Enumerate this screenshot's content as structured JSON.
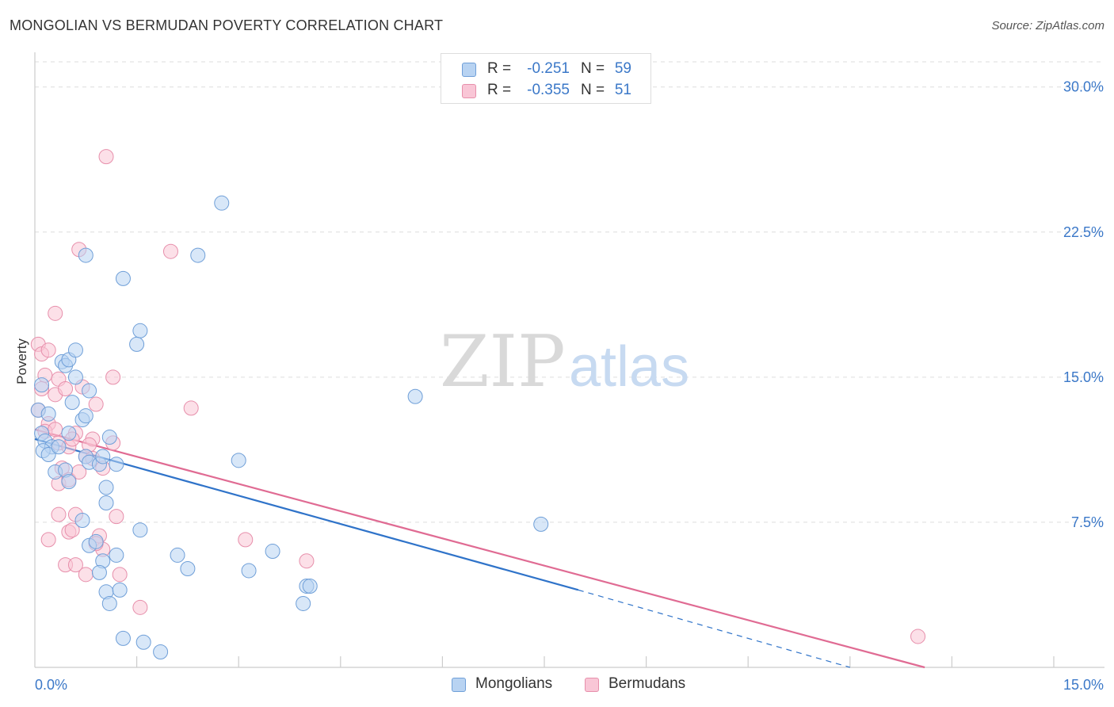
{
  "header": {
    "title": "MONGOLIAN VS BERMUDAN POVERTY CORRELATION CHART",
    "source": "Source: ZipAtlas.com"
  },
  "watermark": {
    "zip": "ZIP",
    "atlas": "atlas"
  },
  "legend": {
    "rows": [
      {
        "r_label": "R =",
        "r_value": "-0.251",
        "n_label": "N =",
        "n_value": "59"
      },
      {
        "r_label": "R =",
        "r_value": "-0.355",
        "n_label": "N =",
        "n_value": "51"
      }
    ]
  },
  "bottom_legend": {
    "mongolians": "Mongolians",
    "bermudans": "Bermudans"
  },
  "colors": {
    "mongolian_fill": "#b8d3f2",
    "mongolian_stroke": "#6f9fd8",
    "mongolian_line": "#2f73c9",
    "bermudan_fill": "#f9c6d6",
    "bermudan_stroke": "#e78fab",
    "bermudan_line": "#e06b93",
    "tick_label": "#3b78c8",
    "grid": "#dddddd"
  },
  "chart_data": {
    "type": "scatter",
    "title": "MONGOLIAN VS BERMUDAN POVERTY CORRELATION CHART",
    "xlabel": "",
    "ylabel": "Poverty",
    "xlim": [
      0,
      15
    ],
    "ylim": [
      0,
      31.3
    ],
    "x_tick_labels": [
      "0.0%",
      "15.0%"
    ],
    "y_ticks": [
      7.5,
      15.0,
      22.5,
      30.0
    ],
    "y_tick_labels": [
      "7.5%",
      "15.0%",
      "22.5%",
      "30.0%"
    ],
    "grid": true,
    "legend_position": "top-center",
    "series": [
      {
        "name": "Mongolians",
        "r": -0.251,
        "n": 59,
        "trend": {
          "x_start": 0.0,
          "y_start": 11.8,
          "x_end": 8.0,
          "y_end": 4.0,
          "dashed_to_x": 12.0,
          "dashed_to_y": 0.0
        },
        "points": [
          [
            0.1,
            14.6
          ],
          [
            0.05,
            13.3
          ],
          [
            0.2,
            13.1
          ],
          [
            0.1,
            12.1
          ],
          [
            0.15,
            11.7
          ],
          [
            0.25,
            11.4
          ],
          [
            0.12,
            11.2
          ],
          [
            0.2,
            11.0
          ],
          [
            0.35,
            11.4
          ],
          [
            0.4,
            15.8
          ],
          [
            0.45,
            15.6
          ],
          [
            0.5,
            15.9
          ],
          [
            0.55,
            13.7
          ],
          [
            0.5,
            12.1
          ],
          [
            0.6,
            16.4
          ],
          [
            0.6,
            15.0
          ],
          [
            0.3,
            10.1
          ],
          [
            0.45,
            10.2
          ],
          [
            0.5,
            9.6
          ],
          [
            0.7,
            12.8
          ],
          [
            0.75,
            13.0
          ],
          [
            0.8,
            14.3
          ],
          [
            0.75,
            10.9
          ],
          [
            0.8,
            10.6
          ],
          [
            0.7,
            7.6
          ],
          [
            0.8,
            6.3
          ],
          [
            0.9,
            6.5
          ],
          [
            0.95,
            10.5
          ],
          [
            1.0,
            10.9
          ],
          [
            1.05,
            9.3
          ],
          [
            1.05,
            8.5
          ],
          [
            1.1,
            11.9
          ],
          [
            1.2,
            10.5
          ],
          [
            1.0,
            5.5
          ],
          [
            1.2,
            5.8
          ],
          [
            1.05,
            3.9
          ],
          [
            1.1,
            3.3
          ],
          [
            1.25,
            4.0
          ],
          [
            0.95,
            4.9
          ],
          [
            1.55,
            17.4
          ],
          [
            1.5,
            16.7
          ],
          [
            1.3,
            20.1
          ],
          [
            1.55,
            7.1
          ],
          [
            0.75,
            21.3
          ],
          [
            2.4,
            21.3
          ],
          [
            2.75,
            24.0
          ],
          [
            2.1,
            5.8
          ],
          [
            2.25,
            5.1
          ],
          [
            3.0,
            10.7
          ],
          [
            3.15,
            5.0
          ],
          [
            3.5,
            6.0
          ],
          [
            4.0,
            4.2
          ],
          [
            4.05,
            4.2
          ],
          [
            3.95,
            3.3
          ],
          [
            5.6,
            14.0
          ],
          [
            7.45,
            7.4
          ],
          [
            1.6,
            1.3
          ],
          [
            1.85,
            0.8
          ],
          [
            1.3,
            1.5
          ]
        ]
      },
      {
        "name": "Bermudans",
        "r": -0.355,
        "n": 51,
        "trend": {
          "x_start": 0.0,
          "y_start": 12.3,
          "x_end": 13.1,
          "y_end": 0.0
        },
        "points": [
          [
            0.05,
            16.7
          ],
          [
            0.1,
            16.2
          ],
          [
            0.15,
            15.1
          ],
          [
            0.2,
            16.4
          ],
          [
            0.1,
            14.4
          ],
          [
            0.05,
            13.3
          ],
          [
            0.2,
            12.6
          ],
          [
            0.15,
            12.2
          ],
          [
            0.3,
            18.3
          ],
          [
            0.35,
            14.9
          ],
          [
            0.3,
            14.1
          ],
          [
            0.45,
            14.4
          ],
          [
            0.35,
            11.6
          ],
          [
            0.5,
            11.4
          ],
          [
            0.6,
            12.1
          ],
          [
            0.55,
            11.8
          ],
          [
            0.7,
            14.5
          ],
          [
            0.85,
            11.8
          ],
          [
            0.8,
            11.5
          ],
          [
            0.75,
            10.9
          ],
          [
            0.4,
            10.3
          ],
          [
            0.35,
            9.5
          ],
          [
            0.5,
            9.7
          ],
          [
            0.85,
            10.8
          ],
          [
            0.9,
            13.6
          ],
          [
            1.15,
            11.6
          ],
          [
            1.0,
            10.3
          ],
          [
            1.15,
            15.0
          ],
          [
            0.65,
            21.6
          ],
          [
            1.05,
            26.4
          ],
          [
            2.0,
            21.5
          ],
          [
            2.3,
            13.4
          ],
          [
            0.35,
            7.9
          ],
          [
            0.5,
            7.0
          ],
          [
            0.6,
            7.9
          ],
          [
            0.55,
            7.1
          ],
          [
            0.2,
            6.6
          ],
          [
            0.45,
            5.3
          ],
          [
            0.6,
            5.3
          ],
          [
            0.75,
            4.8
          ],
          [
            1.0,
            6.1
          ],
          [
            0.95,
            6.8
          ],
          [
            1.2,
            7.8
          ],
          [
            1.25,
            4.8
          ],
          [
            1.55,
            3.1
          ],
          [
            3.1,
            6.6
          ],
          [
            4.0,
            5.5
          ],
          [
            13.0,
            1.6
          ],
          [
            0.3,
            12.3
          ],
          [
            0.65,
            10.1
          ],
          [
            0.9,
            6.4
          ]
        ]
      }
    ]
  }
}
